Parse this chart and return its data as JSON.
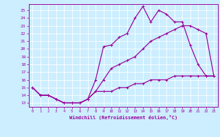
{
  "xlabel": "Windchill (Refroidissement éolien,°C)",
  "bg_color": "#cceeff",
  "line_color": "#990099",
  "grid_color": "#ffffff",
  "xlim": [
    -0.5,
    23.5
  ],
  "ylim": [
    12.5,
    25.8
  ],
  "yticks": [
    13,
    14,
    15,
    16,
    17,
    18,
    19,
    20,
    21,
    22,
    23,
    24,
    25
  ],
  "xticks": [
    0,
    1,
    2,
    3,
    4,
    5,
    6,
    7,
    8,
    9,
    10,
    11,
    12,
    13,
    14,
    15,
    16,
    17,
    18,
    19,
    20,
    21,
    22,
    23
  ],
  "line1": [
    15,
    14,
    14,
    13.5,
    13,
    13,
    13,
    13.5,
    16,
    20.3,
    20.5,
    21.5,
    22,
    24,
    25.5,
    23.5,
    25,
    24.5,
    23.5,
    23.5,
    20.5,
    18,
    16.5,
    16.5
  ],
  "line2": [
    15,
    14,
    14,
    13.5,
    13,
    13,
    13,
    13.5,
    14.5,
    16,
    17.5,
    18,
    18.5,
    19,
    20,
    21,
    21.5,
    22,
    22.5,
    23,
    23,
    22.5,
    22,
    16.5
  ],
  "line3": [
    15,
    14,
    14,
    13.5,
    13,
    13,
    13,
    13.5,
    14.5,
    14.5,
    14.5,
    15,
    15,
    15.5,
    15.5,
    16,
    16,
    16,
    16.5,
    16.5,
    16.5,
    16.5,
    16.5,
    16.5
  ]
}
